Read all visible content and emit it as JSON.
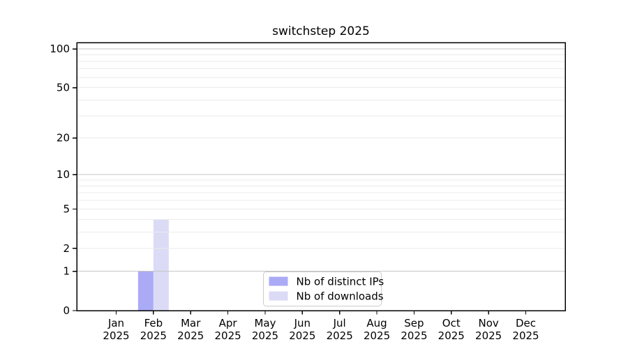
{
  "figure": {
    "title": "switchstep 2025"
  },
  "chart_data": {
    "type": "bar",
    "title": "switchstep 2025",
    "categories": [
      "Jan 2025",
      "Feb 2025",
      "Mar 2025",
      "Apr 2025",
      "May 2025",
      "Jun 2025",
      "Jul 2025",
      "Aug 2025",
      "Sep 2025",
      "Oct 2025",
      "Nov 2025",
      "Dec 2025"
    ],
    "series": [
      {
        "name": "Nb of distinct IPs",
        "color": "#aaaaf6",
        "values": [
          0,
          1,
          0,
          0,
          0,
          0,
          0,
          0,
          0,
          0,
          0,
          0
        ]
      },
      {
        "name": "Nb of downloads",
        "color": "#dbdbf6",
        "values": [
          0,
          4,
          0,
          0,
          0,
          0,
          0,
          0,
          0,
          0,
          0,
          0
        ]
      }
    ],
    "xlabel": "",
    "ylabel": "",
    "y_scale": "log1p",
    "ylim": [
      0,
      112
    ],
    "y_ticks": [
      0,
      1,
      2,
      5,
      10,
      20,
      50,
      100
    ],
    "grid": "horizontal, major + log minor",
    "legend_position": "lower center",
    "colors": {
      "axis": "#000000",
      "tick_label": "#000000",
      "grid_major": "#c6c6c6",
      "grid_minor": "#ebebeb",
      "legend_border": "#cccccc",
      "legend_background": "#ffffff"
    }
  }
}
